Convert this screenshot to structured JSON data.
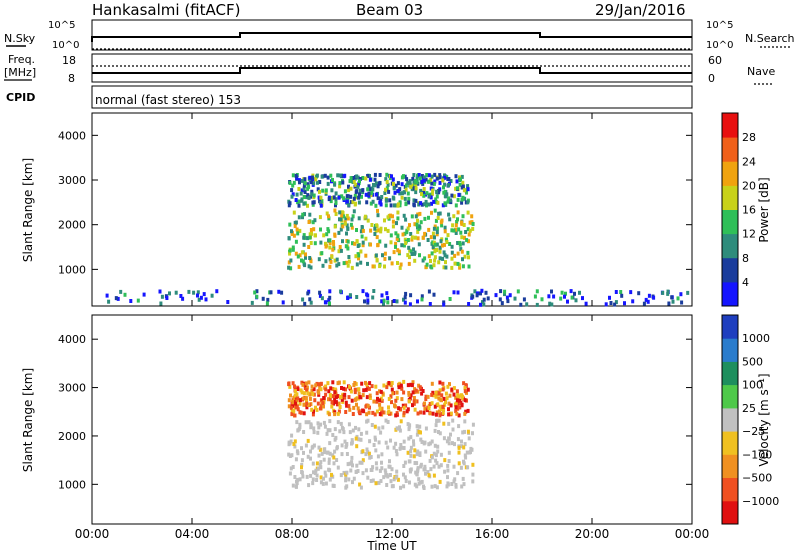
{
  "header": {
    "station": "Hankasalmi (fitACF)",
    "beam": "Beam 03",
    "date": "29/Jan/2016"
  },
  "status_panels": {
    "nsky_label": "N.Sky",
    "nsearch_label": "N.Search",
    "noise_ticks": [
      "10^5",
      "10^0"
    ],
    "freq_label": "Freq.",
    "freq_unit": "[MHz]",
    "freq_ticks": [
      "18",
      "8"
    ],
    "nave_label": "Nave",
    "nave_ticks": [
      "60",
      "0"
    ],
    "cpid_label": "CPID",
    "cpid_text": "normal (fast stereo) 153"
  },
  "chart_data": [
    {
      "type": "heatmap",
      "title": "",
      "xlabel": "",
      "ylabel": "Slant Range [km]",
      "x_range_hours": [
        0,
        24
      ],
      "y_range_km": [
        180,
        4500
      ],
      "yticks": [
        1000,
        2000,
        3000,
        4000
      ],
      "colorbar": {
        "label": "Power [dB]",
        "tick_values": [
          4,
          8,
          12,
          16,
          20,
          24,
          28
        ],
        "colors": [
          "#1515ff",
          "#1a3c9c",
          "#2e8c7c",
          "#2fbf58",
          "#c8d21a",
          "#f0a30f",
          "#f0601a",
          "#e81010"
        ]
      },
      "regions": [
        {
          "name": "main echo",
          "t_start": 7.8,
          "t_end": 15.2,
          "r_min": 1000,
          "r_max": 2300,
          "typical_power_db": 18
        },
        {
          "name": "upper band",
          "t_start": 7.8,
          "t_end": 15.0,
          "r_min": 2400,
          "r_max": 3100,
          "typical_power_db": 12
        },
        {
          "name": "near range",
          "t_start": 0.5,
          "t_end": 24,
          "r_min": 180,
          "r_max": 500,
          "typical_power_db": 8
        }
      ]
    },
    {
      "type": "heatmap",
      "title": "",
      "xlabel": "Time UT",
      "ylabel": "Slant Range [km]",
      "x_range_hours": [
        0,
        24
      ],
      "y_range_km": [
        180,
        4500
      ],
      "xticks": [
        "00:00",
        "04:00",
        "08:00",
        "12:00",
        "16:00",
        "20:00",
        "00:00"
      ],
      "yticks": [
        1000,
        2000,
        3000,
        4000
      ],
      "colorbar": {
        "label": "Velocity [m s⁻¹]",
        "tick_labels": [
          "1000",
          "500",
          "100",
          "25",
          "−25",
          "−100",
          "−500",
          "−1000"
        ],
        "colors": [
          "#1f3fbf",
          "#2a7ccc",
          "#1e8f5e",
          "#4fc94a",
          "#c0c0c0",
          "#f0c020",
          "#f09020",
          "#f05020",
          "#e01010"
        ]
      },
      "regions": [
        {
          "name": "ground scatter",
          "t_start": 7.8,
          "t_end": 15.2,
          "r_min": 900,
          "r_max": 2300,
          "typical_velocity": 0
        },
        {
          "name": "ionospheric echo",
          "t_start": 7.8,
          "t_end": 15.0,
          "r_min": 2400,
          "r_max": 3100,
          "typical_velocity": -300
        }
      ]
    }
  ]
}
